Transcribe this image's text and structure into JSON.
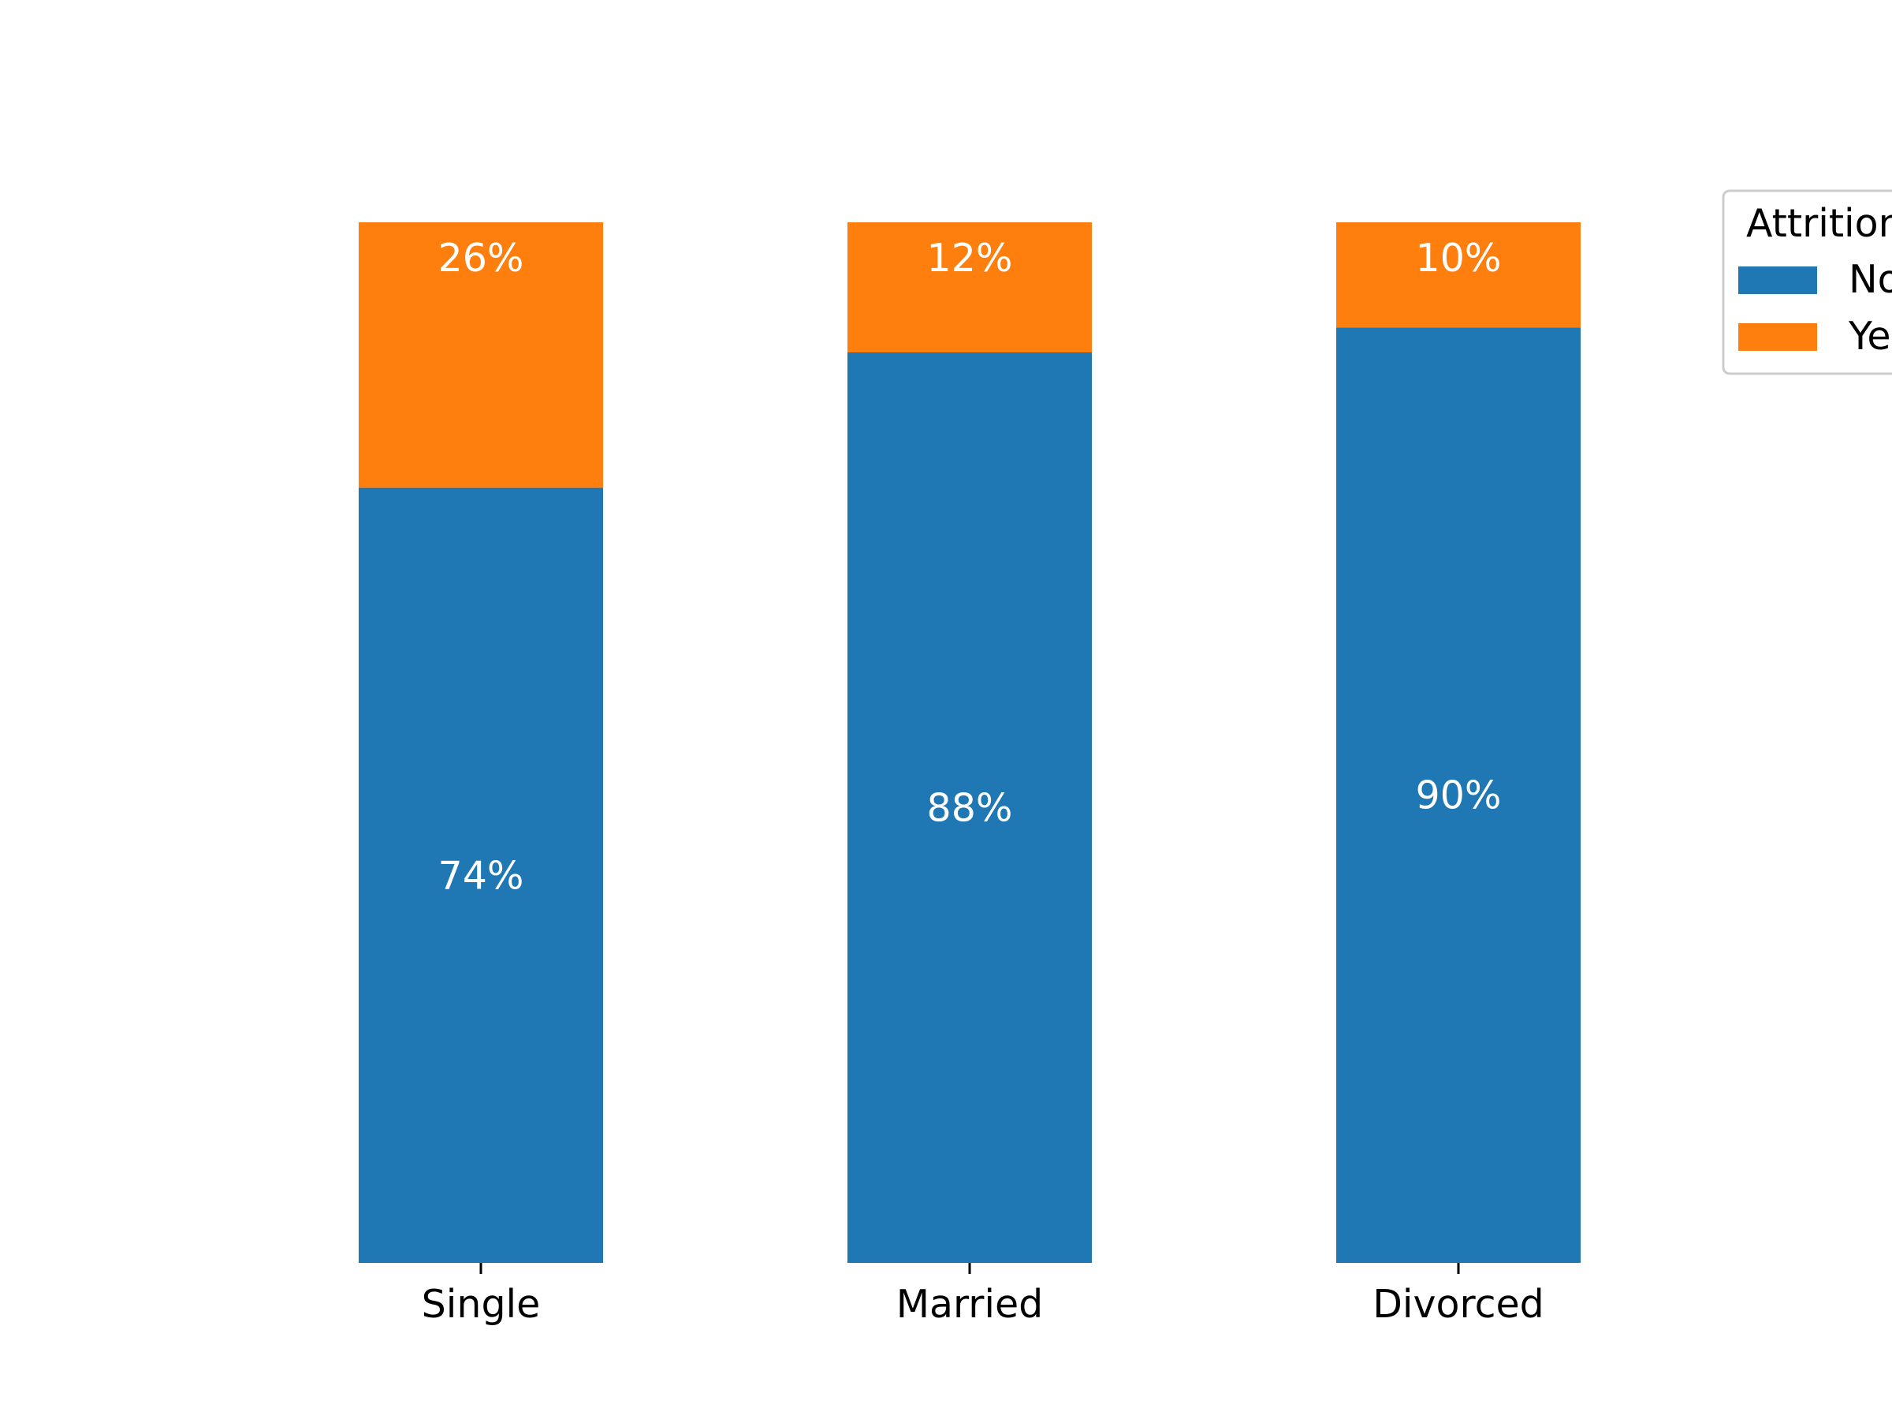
{
  "colors": {
    "no": "#1f77b4",
    "yes": "#ff7f0e"
  },
  "chart_data": {
    "type": "bar",
    "stacked": true,
    "normalized": true,
    "categories": [
      "Single",
      "Married",
      "Divorced"
    ],
    "series": [
      {
        "name": "No",
        "values": [
          74.5,
          87.5,
          89.9
        ],
        "labels": [
          "74%",
          "88%",
          "90%"
        ]
      },
      {
        "name": "Yes",
        "values": [
          25.5,
          12.5,
          10.1
        ],
        "labels": [
          "26%",
          "12%",
          "10%"
        ]
      }
    ],
    "ylim": [
      0,
      100
    ],
    "legend": {
      "title": "Attrition",
      "placement": "top-right, outside plot (clipped)"
    },
    "grid": false
  }
}
